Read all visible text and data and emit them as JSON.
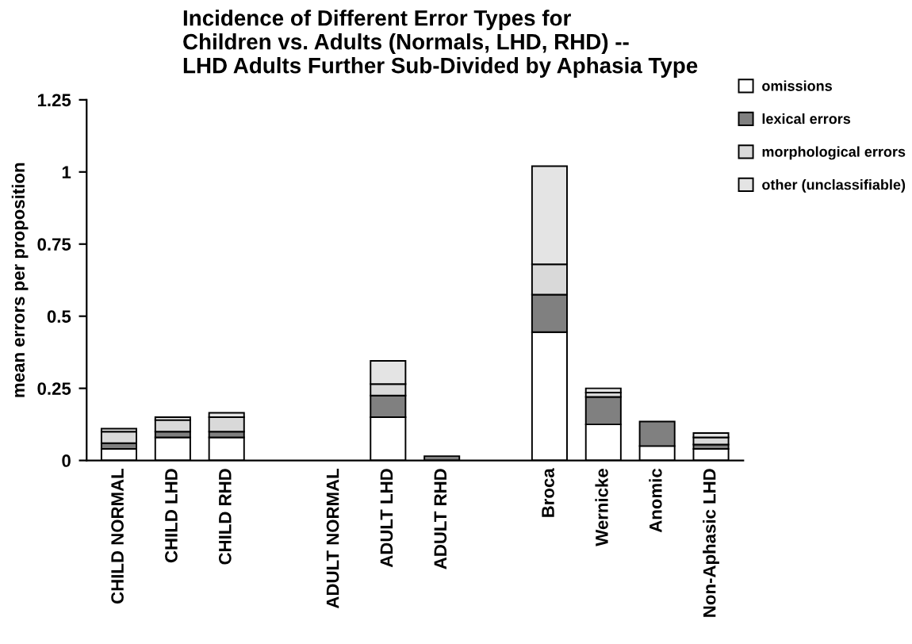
{
  "chart_data": {
    "type": "bar",
    "stacked": true,
    "title": "Incidence of Different Error Types for\nChildren vs. Adults (Normals, LHD, RHD) --\nLHD Adults Further Sub-Divided by Aphasia Type",
    "ylabel": "mean errors per proposition",
    "categories": [
      "CHILD NORMAL",
      "CHILD LHD",
      "CHILD RHD",
      null,
      "ADULT NORMAL",
      "ADULT LHD",
      "ADULT RHD",
      null,
      "Broca",
      "Wernicke",
      "Anomic",
      "Non-Aphasic LHD"
    ],
    "series": [
      {
        "name": "omissions",
        "color": "#ffffff",
        "values": [
          0.04,
          0.08,
          0.08,
          null,
          0,
          0.15,
          0,
          null,
          0.445,
          0.125,
          0.05,
          0.04
        ]
      },
      {
        "name": "lexical errors",
        "color": "#808080",
        "values": [
          0.02,
          0.02,
          0.02,
          null,
          0,
          0.075,
          0.015,
          null,
          0.13,
          0.095,
          0.085,
          0.015
        ]
      },
      {
        "name": "morphological errors",
        "color": "#d9d9d9",
        "values": [
          0.04,
          0.04,
          0.05,
          null,
          0,
          0.04,
          0,
          null,
          0.105,
          0.015,
          0,
          0.025
        ]
      },
      {
        "name": "other (unclassifiable)",
        "color": "#e4e4e4",
        "values": [
          0.01,
          0.01,
          0.015,
          null,
          0,
          0.08,
          0,
          null,
          0.34,
          0.015,
          0,
          0.015
        ]
      }
    ],
    "ylim": [
      0,
      1.25
    ],
    "yticks": [
      0,
      0.25,
      0.5,
      0.75,
      1,
      1.25
    ],
    "legend": "top right",
    "grid": false
  }
}
